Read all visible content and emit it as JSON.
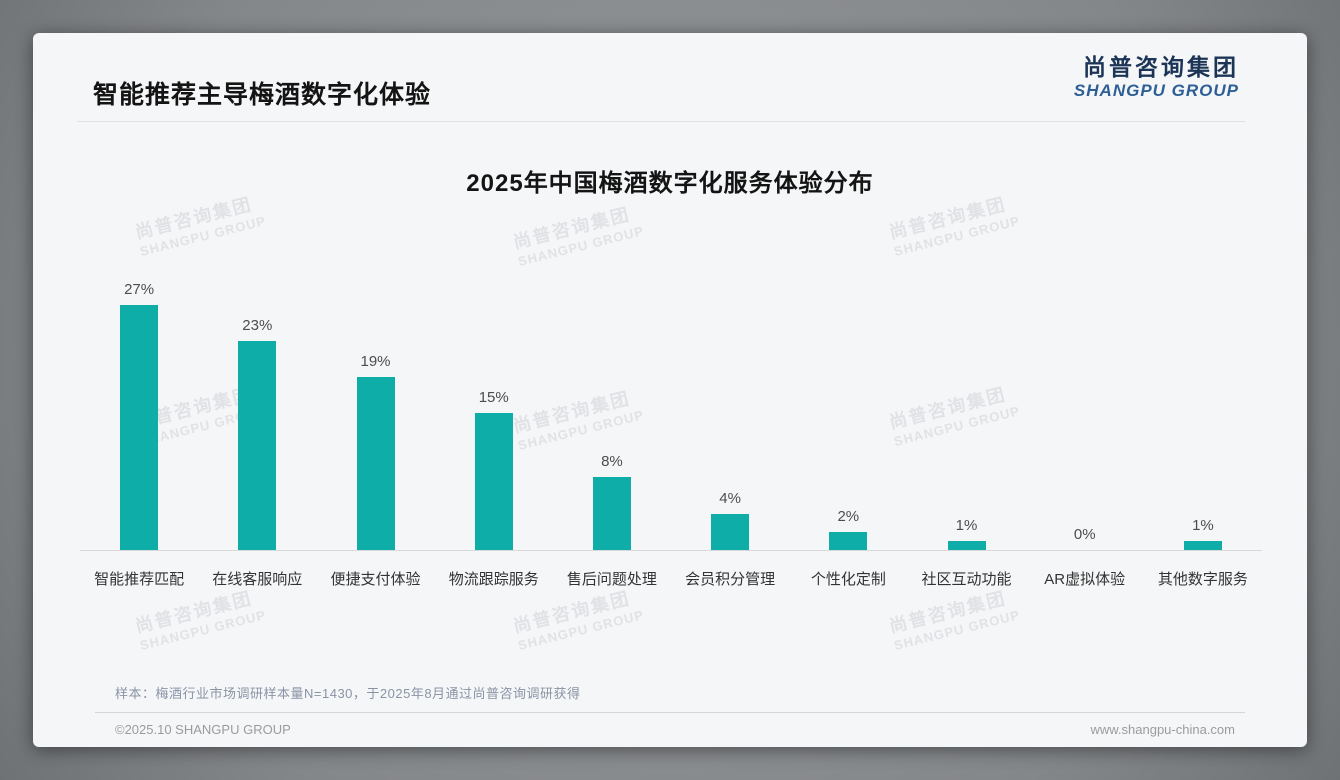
{
  "page": {
    "title": "智能推荐主导梅酒数字化体验",
    "logo": {
      "cn": "尚普咨询集团",
      "en": "SHANGPU GROUP"
    },
    "watermark": {
      "cn": "尚普咨询集团",
      "en": "SHANGPU GROUP"
    },
    "footnote": "样本：梅酒行业市场调研样本量N=1430，于2025年8月通过尚普咨询调研获得",
    "footer": {
      "left": "©2025.10 SHANGPU GROUP",
      "right": "www.shangpu-china.com"
    }
  },
  "chart_data": {
    "type": "bar",
    "title": "2025年中国梅酒数字化服务体验分布",
    "categories": [
      "智能推荐匹配",
      "在线客服响应",
      "便捷支付体验",
      "物流跟踪服务",
      "售后问题处理",
      "会员积分管理",
      "个性化定制",
      "社区互动功能",
      "AR虚拟体验",
      "其他数字服务"
    ],
    "values": [
      27,
      23,
      19,
      15,
      8,
      4,
      2,
      1,
      0,
      1
    ],
    "value_labels": [
      "27%",
      "23%",
      "19%",
      "15%",
      "8%",
      "4%",
      "2%",
      "1%",
      "0%",
      "1%"
    ],
    "unit": "%",
    "ylim": [
      0,
      30
    ],
    "grid": false,
    "legend": "none",
    "bar_color": "#0FADA8",
    "axis_line_color": "#D9D9D9",
    "value_label_color": "#4D4D4D",
    "category_label_color": "#333333"
  }
}
